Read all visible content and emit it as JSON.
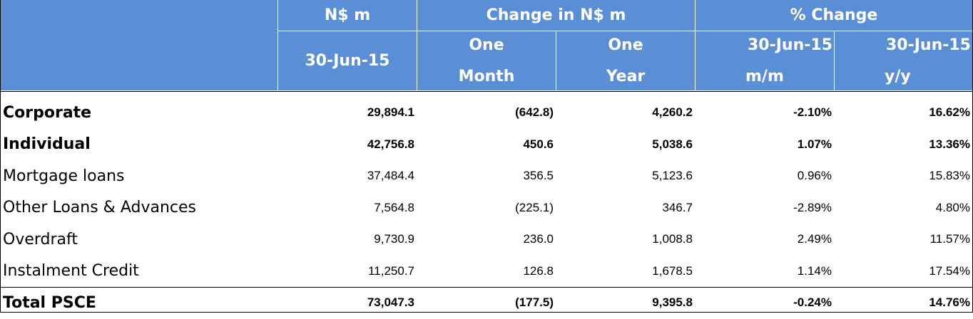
{
  "table": {
    "header": {
      "row1": [
        "N$ m",
        "Change in N$ m",
        "% Change"
      ],
      "row2": [
        [
          "30-Jun-15"
        ],
        [
          "One",
          "Month"
        ],
        [
          "One",
          "Year"
        ],
        [
          "30-Jun-15",
          "m/m"
        ],
        [
          "30-Jun-15",
          "y/y"
        ]
      ]
    },
    "rows": [
      {
        "label": "Corporate",
        "bold": true,
        "values": [
          "29,894.1",
          "(642.8)",
          "4,260.2",
          "-2.10%",
          "16.62%"
        ]
      },
      {
        "label": "Individual",
        "bold": true,
        "values": [
          "42,756.8",
          "450.6",
          "5,038.6",
          "1.07%",
          "13.36%"
        ]
      },
      {
        "label": "Mortgage loans",
        "bold": false,
        "values": [
          "37,484.4",
          "356.5",
          "5,123.6",
          "0.96%",
          "15.83%"
        ]
      },
      {
        "label": "Other Loans & Advances",
        "bold": false,
        "values": [
          "7,564.8",
          "(225.1)",
          "346.7",
          "-2.89%",
          "4.80%"
        ]
      },
      {
        "label": "Overdraft",
        "bold": false,
        "values": [
          "9,730.9",
          "236.0",
          "1,008.8",
          "2.49%",
          "11.57%"
        ]
      },
      {
        "label": "Instalment Credit",
        "bold": false,
        "values": [
          "11,250.7",
          "126.8",
          "1,678.5",
          "1.14%",
          "17.54%"
        ]
      },
      {
        "label": "Total PSCE",
        "bold": true,
        "values": [
          "73,047.3",
          "(177.5)",
          "9,395.8",
          "-0.24%",
          "14.76%"
        ]
      }
    ]
  }
}
